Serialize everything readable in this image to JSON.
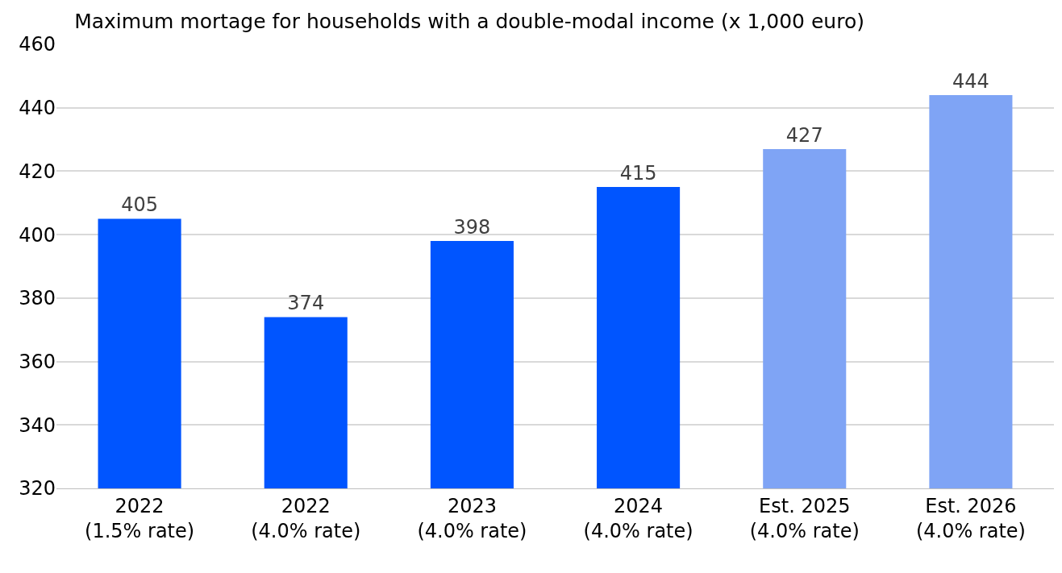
{
  "chart_data": {
    "type": "bar",
    "title": "Maximum mortage for households with a double-modal income (x 1,000 euro)",
    "categories": [
      "2022\n(1.5% rate)",
      "2022\n(4.0% rate)",
      "2023\n(4.0% rate)",
      "2024\n(4.0% rate)",
      "Est. 2025\n(4.0% rate)",
      "Est. 2026\n(4.0% rate)"
    ],
    "values": [
      405,
      374,
      398,
      415,
      427,
      444
    ],
    "colors": [
      "#0055ff",
      "#0055ff",
      "#0055ff",
      "#0055ff",
      "#7fa4f5",
      "#7fa4f5"
    ],
    "ylim": [
      320,
      460
    ],
    "yticks": [
      320,
      340,
      360,
      380,
      400,
      420,
      440,
      460
    ],
    "grid": "y",
    "data_labels": true
  }
}
